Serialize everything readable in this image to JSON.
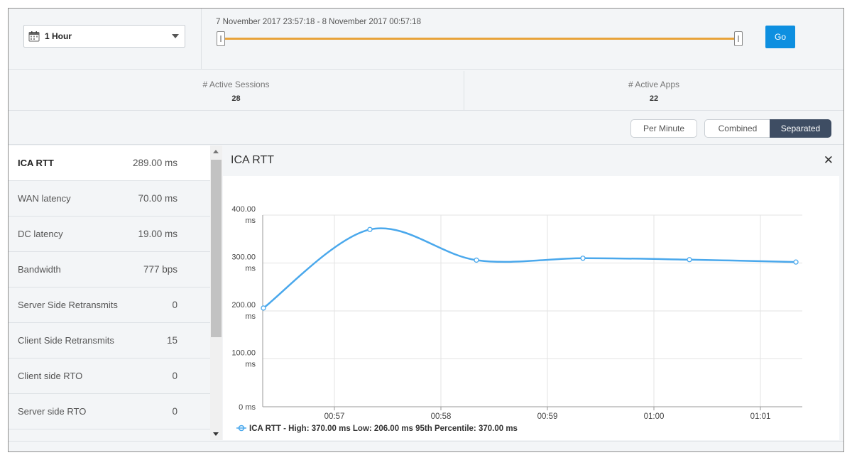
{
  "toolbar": {
    "range_label": "1 Hour",
    "time_range_text": "7 November 2017 23:57:18 - 8 November 2017 00:57:18",
    "go_label": "Go"
  },
  "stats": {
    "sessions_label": "# Active Sessions",
    "sessions_value": "28",
    "apps_label": "# Active Apps",
    "apps_value": "22"
  },
  "view_toggles": {
    "per_minute": "Per Minute",
    "combined": "Combined",
    "separated": "Separated"
  },
  "metrics": [
    {
      "name": "ICA RTT",
      "value": "289.00 ms",
      "active": true
    },
    {
      "name": "WAN latency",
      "value": "70.00 ms",
      "active": false
    },
    {
      "name": "DC latency",
      "value": "19.00 ms",
      "active": false
    },
    {
      "name": "Bandwidth",
      "value": "777 bps",
      "active": false
    },
    {
      "name": "Server Side Retransmits",
      "value": "0",
      "active": false
    },
    {
      "name": "Client Side Retransmits",
      "value": "15",
      "active": false
    },
    {
      "name": "Client side RTO",
      "value": "0",
      "active": false
    },
    {
      "name": "Server side RTO",
      "value": "0",
      "active": false
    }
  ],
  "chart_panel": {
    "title": "ICA RTT"
  },
  "colors": {
    "accent": "#0d8fe0",
    "slider": "#e8a33a",
    "series": "#4aa8ec",
    "toggle_active": "#3e4d63"
  },
  "chart_data": {
    "type": "line",
    "title": "ICA RTT",
    "x": [
      "00:56:20",
      "00:57:20",
      "00:58:20",
      "00:59:20",
      "01:00:20",
      "01:01:20"
    ],
    "x_ticks": [
      "00:57",
      "00:58",
      "00:59",
      "01:00",
      "01:01"
    ],
    "y_ticks": [
      {
        "value": 400,
        "label_line1": "400.00",
        "label_line2": "ms"
      },
      {
        "value": 300,
        "label_line1": "300.00",
        "label_line2": "ms"
      },
      {
        "value": 200,
        "label_line1": "200.00",
        "label_line2": "ms"
      },
      {
        "value": 100,
        "label_line1": "100.00",
        "label_line2": "ms"
      },
      {
        "value": 0,
        "label_line1": "0 ms",
        "label_line2": ""
      }
    ],
    "ylim": [
      0,
      400
    ],
    "grid": true,
    "series": [
      {
        "name": "ICA RTT",
        "values": [
          206,
          370,
          306,
          310,
          307,
          302
        ]
      }
    ],
    "legend_text": "ICA RTT - High: 370.00 ms Low: 206.00 ms 95th Percentile: 370.00 ms",
    "legend_position": "bottom-left"
  }
}
